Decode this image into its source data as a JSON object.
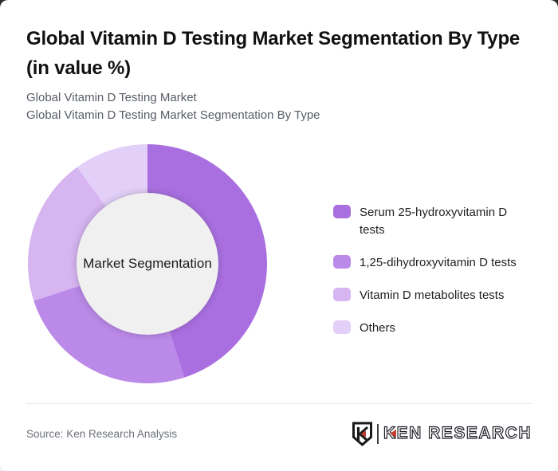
{
  "header": {
    "title": "Global Vitamin D Testing Market Segmentation By Type (in value %)",
    "subtitle_line1": "Global Vitamin D Testing Market",
    "subtitle_line2": "Global Vitamin D Testing Market Segmentation By Type"
  },
  "chart_data": {
    "type": "pie",
    "variant": "donut",
    "title": "Global Vitamin D Testing Market Segmentation By Type (in value %)",
    "center_label": "Market Segmentation",
    "labels": [
      "Serum 25-hydroxyvitamin D tests",
      "1,25-dihydroxyvitamin D tests",
      "Vitamin D metabolites tests",
      "Others"
    ],
    "values": [
      45,
      25,
      20,
      10
    ],
    "unit": "percent of market value",
    "colors": [
      "#a96fe0",
      "#bb89e8",
      "#d6b5f1",
      "#e3d0f8"
    ],
    "inner_circle_color": "#f0f0f1",
    "legend_position": "right",
    "start_angle_deg": 0,
    "direction": "clockwise"
  },
  "footer": {
    "source": "Source: Ken Research Analysis",
    "logo_text": "KEN RESEARCH",
    "logo_accent_color": "#c43b2f"
  }
}
